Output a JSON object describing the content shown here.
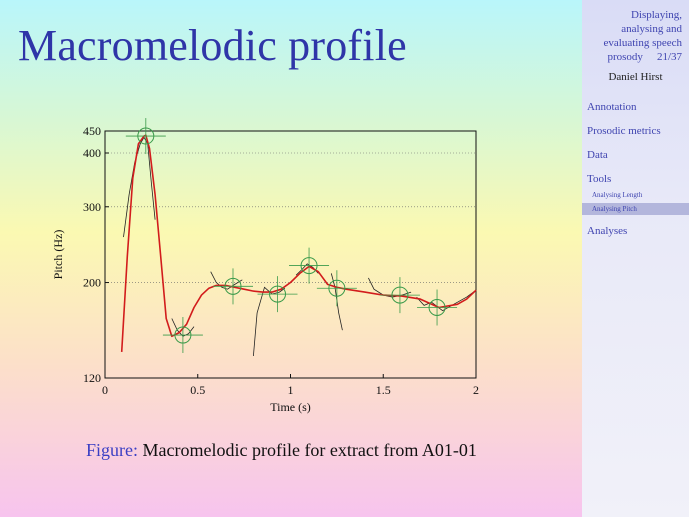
{
  "slide": {
    "title": "Macromelodic profile"
  },
  "caption": {
    "label": "Figure:",
    "text": " Macromelodic profile for extract from A01-01"
  },
  "sidebar": {
    "title_lines": [
      "Displaying,",
      "analysing and",
      "evaluating speech"
    ],
    "title_last": "prosody",
    "page": "21/37",
    "author": "Daniel Hirst",
    "items": [
      {
        "label": "Annotation"
      },
      {
        "label": "Prosodic metrics"
      },
      {
        "label": "Data"
      },
      {
        "label": "Tools"
      }
    ],
    "subitems": [
      {
        "label": "Analysing Length"
      },
      {
        "label": "Analysing Pitch",
        "active": true
      }
    ],
    "items_after": [
      {
        "label": "Analyses"
      }
    ]
  },
  "chart_data": {
    "type": "line",
    "xlabel": "Time (s)",
    "ylabel": "Pitch (Hz)",
    "xlim": [
      0,
      2
    ],
    "ylim": [
      120,
      450
    ],
    "y_scale": "log",
    "xticks": [
      "0",
      "0.5",
      "1",
      "1.5",
      "2"
    ],
    "yticks": [
      "120",
      "200",
      "300",
      "400",
      "450"
    ],
    "grid": "dotted horizontal at 200, 300, 400",
    "colors": {
      "smooth_curve": "#d21c1c",
      "raw_pitch": "#222222",
      "targets": "#3a9a4a"
    },
    "series": [
      {
        "x": [
          0.09,
          0.12,
          0.15,
          0.18,
          0.21,
          0.22,
          0.24,
          0.27,
          0.3,
          0.33,
          0.36,
          0.4,
          0.44,
          0.48,
          0.52,
          0.56,
          0.6,
          0.65,
          0.7,
          0.75,
          0.8,
          0.85,
          0.9,
          0.95,
          1.0,
          1.05,
          1.1,
          1.15,
          1.2,
          1.25,
          1.3,
          1.4,
          1.5,
          1.6,
          1.7,
          1.8,
          1.9,
          1.95,
          2.0
        ],
        "values": [
          138,
          230,
          350,
          420,
          438,
          440,
          410,
          320,
          230,
          165,
          150,
          153,
          160,
          175,
          187,
          194,
          197,
          197,
          195,
          193,
          191,
          190,
          190,
          193,
          200,
          210,
          218,
          212,
          198,
          195,
          193,
          190,
          187,
          186,
          183,
          175,
          178,
          183,
          192
        ]
      },
      {
        "segments": [
          {
            "x": [
              0.1,
              0.13,
              0.16,
              0.19,
              0.21,
              0.23,
              0.25,
              0.27
            ],
            "values": [
              255,
              320,
              380,
              420,
              435,
              420,
              340,
              280
            ]
          },
          {
            "x": [
              0.36,
              0.39,
              0.42,
              0.45,
              0.48
            ],
            "values": [
              165,
              155,
              150,
              152,
              158
            ]
          },
          {
            "x": [
              0.57,
              0.6,
              0.63,
              0.66,
              0.7,
              0.74
            ],
            "values": [
              212,
              200,
              195,
              193,
              198,
              203
            ]
          },
          {
            "x": [
              0.8,
              0.82,
              0.86,
              0.9,
              0.94,
              0.97
            ],
            "values": [
              135,
              170,
              195,
              188,
              190,
              194
            ]
          },
          {
            "x": [
              1.03,
              1.06,
              1.09,
              1.12,
              1.15
            ],
            "values": [
              208,
              214,
              221,
              217,
              210
            ]
          },
          {
            "x": [
              1.22,
              1.24,
              1.26,
              1.28
            ],
            "values": [
              210,
              195,
              170,
              155
            ]
          },
          {
            "x": [
              1.42,
              1.45,
              1.5,
              1.55,
              1.6,
              1.65
            ],
            "values": [
              205,
              193,
              187,
              185,
              187,
              190
            ]
          },
          {
            "x": [
              1.68,
              1.72,
              1.76,
              1.82,
              1.88,
              1.95,
              2.0
            ],
            "values": [
              185,
              177,
              180,
              172,
              178,
              185,
              192
            ]
          }
        ]
      }
    ],
    "targets": {
      "x": [
        0.22,
        0.42,
        0.69,
        0.93,
        1.1,
        1.25,
        1.59,
        1.79
      ],
      "values": [
        438,
        151,
        196,
        188,
        219,
        194,
        187,
        175
      ]
    }
  }
}
